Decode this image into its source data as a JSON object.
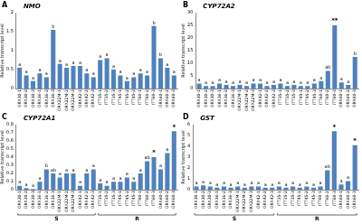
{
  "chart_data": [
    {
      "type": "bar",
      "panel": "A",
      "title": "NMO",
      "y_label": "Relative transcript level",
      "color": "#4f81bd",
      "grid": false,
      "categories": [
        "ORX30-1",
        "ORX30-2",
        "ORX30-3",
        "ORX36-1",
        "ORX36-2",
        "ORX36-3",
        "ORX22M-1",
        "ORX22M-2",
        "ORX22M-3",
        "ORX42-1",
        "ORX42-2",
        "ORX42-3",
        "ITT35-1",
        "ITT35-2",
        "ITT35-3",
        "ITT45-1",
        "ITT45-2",
        "ITT45-3",
        "ITT60-1",
        "ITT60-2",
        "ITT60-3",
        "ORX60-1",
        "ORX60-2",
        "ORX60-3"
      ],
      "values": [
        0.55,
        0.35,
        0.2,
        0.4,
        0.3,
        1.55,
        0.65,
        0.55,
        0.6,
        0.6,
        0.4,
        0.3,
        0.75,
        0.8,
        0.5,
        0.35,
        0.2,
        0.3,
        0.4,
        0.35,
        1.65,
        0.8,
        0.55,
        0.35
      ],
      "annotations": [
        "a",
        "a",
        "a",
        "a",
        "a",
        "b",
        "a",
        "a",
        "a",
        "a",
        "a",
        "a",
        "a",
        "a",
        "a",
        "a",
        "a",
        "a",
        "a",
        "a",
        "b",
        "b",
        "a",
        "a"
      ],
      "ylim": [
        0,
        2
      ],
      "yticks": [
        0,
        0.5,
        1,
        1.5,
        2
      ]
    },
    {
      "type": "bar",
      "panel": "B",
      "title": "CYP72A2",
      "y_label": "Relative transcript level",
      "color": "#4f81bd",
      "grid": false,
      "categories": [
        "ORX30-1",
        "ORX30-2",
        "ORX30-3",
        "ORX36-1",
        "ORX36-2",
        "ORX36-3",
        "ORX22M-1",
        "ORX22M-2",
        "ORX22M-3",
        "ORX42-1",
        "ORX42-2",
        "ORX42-3",
        "ITT35-1",
        "ITT35-2",
        "ITT35-3",
        "ITT45-1",
        "ITT45-2",
        "ITT45-3",
        "ITT60-1",
        "ITT60-2",
        "ITT60-3",
        "ORX60-1",
        "ORX60-2",
        "ORX60-3"
      ],
      "values": [
        2,
        1,
        1,
        2,
        1.5,
        1,
        1.5,
        1,
        2,
        2,
        1,
        1.5,
        2,
        1,
        1.5,
        1,
        1,
        2,
        3,
        7,
        25,
        2.5,
        1.5,
        12.5
      ],
      "annotations": [
        "a",
        "a",
        "a",
        "a",
        "a",
        "a",
        "a",
        "a",
        "a",
        "a",
        "a",
        "a",
        "a",
        "a",
        "a",
        "a",
        "a",
        "a",
        "a",
        "ab",
        "**",
        "a",
        "a",
        "b"
      ],
      "ylim": [
        0,
        30
      ],
      "yticks": [
        0,
        5,
        10,
        15,
        20,
        25,
        30
      ]
    },
    {
      "type": "bar",
      "panel": "C",
      "title": "CYP72A1",
      "y_label": "Relative transcript level",
      "color": "#4f81bd",
      "grid": false,
      "categories": [
        "ORX30-1",
        "ORX30-2",
        "ORX30-3",
        "ORX36-1",
        "ORX36-2",
        "ORX36-3",
        "ORX22M-1",
        "ORX22M-2",
        "ORX22M-3",
        "ORX42-1",
        "ORX42-2",
        "ORX42-3",
        "ITT35-1",
        "ITT35-2",
        "ITT35-3",
        "ITT45-1",
        "ITT45-2",
        "ITT45-3",
        "ITT60-1",
        "ITT60-2",
        "ITT60-3",
        "ORX60-1",
        "ORX60-2",
        "ORX60-3"
      ],
      "values": [
        0.05,
        0.02,
        0.01,
        0.1,
        0.25,
        0.2,
        0.15,
        0.2,
        0.2,
        0.05,
        0.2,
        0.25,
        0.08,
        0.05,
        0.1,
        0.1,
        0.15,
        0.1,
        0.2,
        0.35,
        0.4,
        0.25,
        0.45,
        0.72
      ],
      "annotations": [
        "a",
        "a",
        "a",
        "a",
        "b",
        "ab",
        "a",
        "a",
        "a",
        "a",
        "a",
        "a",
        "a",
        "a",
        "a",
        "a",
        "a",
        "a",
        "a",
        "ab",
        "*",
        "a",
        "a",
        "*"
      ],
      "groups": [
        {
          "label": "S",
          "from": "ORX30-1",
          "to": "ORX42-3"
        },
        {
          "label": "R",
          "from": "ITT35-1",
          "to": "ORX60-3"
        }
      ],
      "ylim": [
        0,
        0.8
      ],
      "yticks": [
        0,
        0.1,
        0.2,
        0.3,
        0.4,
        0.5,
        0.6,
        0.7,
        0.8
      ]
    },
    {
      "type": "bar",
      "panel": "D",
      "title": "GST",
      "y_label": "Relative transcript level",
      "color": "#4f81bd",
      "grid": false,
      "categories": [
        "ORX30-1",
        "ORX30-2",
        "ORX30-3",
        "ORX36-1",
        "ORX36-2",
        "ORX36-3",
        "ORX22M-1",
        "ORX22M-2",
        "ORX22M-3",
        "ORX42-1",
        "ORX42-2",
        "ORX42-3",
        "ITT35-1",
        "ITT35-2",
        "ITT35-3",
        "ITT45-1",
        "ITT45-2",
        "ITT45-3",
        "ITT60-1",
        "ITT60-2",
        "ITT60-3",
        "ORX60-1",
        "ORX60-2",
        "ORX60-3"
      ],
      "values": [
        0.3,
        0.4,
        0.3,
        0.2,
        0.3,
        0.2,
        0.3,
        0.2,
        0.3,
        0.3,
        0.2,
        0.2,
        0.3,
        0.2,
        0.3,
        0.2,
        0.3,
        0.2,
        0.3,
        1.8,
        5.4,
        0.5,
        0.8,
        4.1
      ],
      "annotations": [
        "a",
        "a",
        "a",
        "a",
        "a",
        "a",
        "a",
        "a",
        "a",
        "a",
        "a",
        "a",
        "a",
        "a",
        "a",
        "a",
        "a",
        "a",
        "a",
        "ab",
        "*",
        "a",
        "a",
        "*"
      ],
      "groups": [
        {
          "label": "S",
          "from": "ORX30-1",
          "to": "ORX42-3"
        },
        {
          "label": "R",
          "from": "ITT35-1",
          "to": "ORX60-3"
        }
      ],
      "ylim": [
        0,
        6
      ],
      "yticks": [
        0,
        1,
        2,
        3,
        4,
        5,
        6
      ]
    }
  ]
}
